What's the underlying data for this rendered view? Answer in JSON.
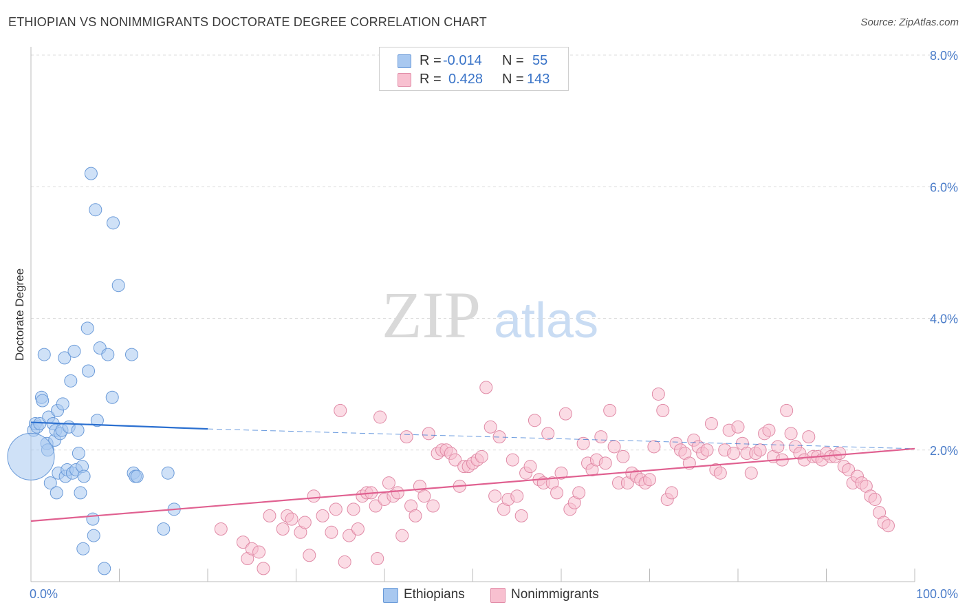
{
  "title": "ETHIOPIAN VS NONIMMIGRANTS DOCTORATE DEGREE CORRELATION CHART",
  "source": "Source: ZipAtlas.com",
  "watermark": {
    "zip": "ZIP",
    "atlas": "atlas"
  },
  "legend": {
    "r_label": "R =",
    "n_label": "N =",
    "rows": [
      {
        "r": "-0.014",
        "n": "55",
        "color": "#a8c8f0",
        "border": "#6a9ad8"
      },
      {
        "r": "0.428",
        "n": "143",
        "color": "#f8c0d0",
        "border": "#e08aa6"
      }
    ]
  },
  "bottom_legend": [
    {
      "label": "Ethiopians",
      "color": "#a8c8f0",
      "border": "#6a9ad8"
    },
    {
      "label": "Nonimmigrants",
      "color": "#f8c0d0",
      "border": "#e08aa6"
    }
  ],
  "chart_data": {
    "type": "scatter",
    "title": "ETHIOPIAN VS NONIMMIGRANTS DOCTORATE DEGREE CORRELATION CHART",
    "xlabel": "",
    "ylabel": "Doctorate Degree",
    "xlim": [
      0,
      100
    ],
    "ylim": [
      0,
      8.0
    ],
    "x_tick_labels": [
      "0.0%",
      "100.0%"
    ],
    "y_ticks": [
      2.0,
      4.0,
      6.0,
      8.0
    ],
    "y_tick_labels": [
      "2.0%",
      "4.0%",
      "6.0%",
      "8.0%"
    ],
    "grid": true,
    "legend_position": "top-center",
    "series": [
      {
        "name": "Ethiopians",
        "color": "#a8c8f0",
        "stroke": "#6a9ad8",
        "trend": {
          "x": [
            0,
            20
          ],
          "y": [
            2.42,
            2.32
          ],
          "dashed_to_x": 100,
          "dashed_to_y": 2.02,
          "color": "#2a6fd0"
        },
        "points": [
          [
            0.3,
            2.3
          ],
          [
            0.5,
            2.4
          ],
          [
            0.7,
            2.35
          ],
          [
            1.0,
            2.4
          ],
          [
            1.2,
            2.8
          ],
          [
            1.3,
            2.75
          ],
          [
            1.5,
            3.45
          ],
          [
            1.8,
            2.1
          ],
          [
            2.0,
            2.5
          ],
          [
            1.9,
            2.0
          ],
          [
            2.2,
            1.5
          ],
          [
            2.5,
            2.4
          ],
          [
            2.7,
            2.15
          ],
          [
            2.8,
            2.3
          ],
          [
            2.9,
            1.35
          ],
          [
            3.0,
            2.6
          ],
          [
            3.1,
            1.65
          ],
          [
            3.3,
            2.25
          ],
          [
            3.5,
            2.3
          ],
          [
            3.6,
            2.7
          ],
          [
            3.8,
            3.4
          ],
          [
            3.9,
            1.6
          ],
          [
            4.1,
            1.7
          ],
          [
            4.3,
            2.35
          ],
          [
            4.5,
            3.05
          ],
          [
            4.7,
            1.65
          ],
          [
            4.9,
            3.5
          ],
          [
            5.1,
            1.7
          ],
          [
            5.3,
            2.3
          ],
          [
            5.4,
            1.95
          ],
          [
            5.6,
            1.35
          ],
          [
            5.8,
            1.75
          ],
          [
            5.9,
            0.5
          ],
          [
            6.0,
            1.6
          ],
          [
            6.4,
            3.85
          ],
          [
            6.5,
            3.2
          ],
          [
            6.8,
            6.2
          ],
          [
            7.0,
            0.95
          ],
          [
            7.1,
            0.7
          ],
          [
            7.3,
            5.65
          ],
          [
            7.5,
            2.45
          ],
          [
            7.8,
            3.55
          ],
          [
            8.3,
            0.2
          ],
          [
            8.7,
            3.45
          ],
          [
            9.3,
            5.45
          ],
          [
            9.2,
            2.8
          ],
          [
            9.9,
            4.5
          ],
          [
            11.4,
            3.45
          ],
          [
            11.6,
            1.65
          ],
          [
            11.8,
            1.6
          ],
          [
            12.0,
            1.6
          ],
          [
            15.0,
            0.8
          ],
          [
            15.5,
            1.65
          ],
          [
            16.2,
            1.1
          ],
          [
            0.0,
            1.9
          ]
        ],
        "sizes": {
          "54": 34
        }
      },
      {
        "name": "Nonimmigrants",
        "color": "#f8c0d0",
        "stroke": "#e08aa6",
        "trend": {
          "x": [
            0,
            100
          ],
          "y": [
            0.92,
            2.02
          ],
          "color": "#e06090"
        },
        "points": [
          [
            21.5,
            0.8
          ],
          [
            24,
            0.6
          ],
          [
            24.5,
            0.35
          ],
          [
            25,
            0.5
          ],
          [
            25.8,
            0.45
          ],
          [
            26.3,
            0.2
          ],
          [
            27,
            1.0
          ],
          [
            28.5,
            0.8
          ],
          [
            29,
            1.0
          ],
          [
            29.5,
            0.95
          ],
          [
            30.5,
            0.75
          ],
          [
            31,
            0.9
          ],
          [
            31.5,
            0.4
          ],
          [
            32,
            1.3
          ],
          [
            33,
            1.0
          ],
          [
            34,
            0.75
          ],
          [
            34.5,
            1.1
          ],
          [
            35.5,
            0.3
          ],
          [
            35,
            2.6
          ],
          [
            36,
            0.7
          ],
          [
            36.5,
            1.1
          ],
          [
            37,
            0.8
          ],
          [
            37.5,
            1.3
          ],
          [
            38,
            1.35
          ],
          [
            38.5,
            1.35
          ],
          [
            39,
            1.15
          ],
          [
            39.5,
            2.5
          ],
          [
            39.2,
            0.35
          ],
          [
            40,
            1.25
          ],
          [
            40.5,
            1.5
          ],
          [
            41,
            1.3
          ],
          [
            41.5,
            1.35
          ],
          [
            42,
            0.7
          ],
          [
            42.5,
            2.2
          ],
          [
            43,
            1.15
          ],
          [
            43.5,
            1.0
          ],
          [
            44,
            1.45
          ],
          [
            44.5,
            1.3
          ],
          [
            45,
            2.25
          ],
          [
            45.5,
            1.15
          ],
          [
            46,
            1.95
          ],
          [
            46.5,
            2.0
          ],
          [
            47,
            2.0
          ],
          [
            47.5,
            1.95
          ],
          [
            48,
            1.85
          ],
          [
            48.5,
            1.45
          ],
          [
            49,
            1.75
          ],
          [
            49.5,
            1.75
          ],
          [
            50,
            1.8
          ],
          [
            50.5,
            1.85
          ],
          [
            51,
            1.9
          ],
          [
            51.5,
            2.95
          ],
          [
            52,
            2.35
          ],
          [
            52.5,
            1.3
          ],
          [
            53,
            2.2
          ],
          [
            53.5,
            1.1
          ],
          [
            54,
            1.25
          ],
          [
            54.5,
            1.85
          ],
          [
            55,
            1.3
          ],
          [
            55.5,
            1.0
          ],
          [
            56,
            1.65
          ],
          [
            56.5,
            1.75
          ],
          [
            57,
            2.45
          ],
          [
            57.5,
            1.55
          ],
          [
            58,
            1.5
          ],
          [
            58.5,
            2.25
          ],
          [
            59,
            1.5
          ],
          [
            59.5,
            1.35
          ],
          [
            60,
            1.65
          ],
          [
            60.5,
            2.55
          ],
          [
            61,
            1.1
          ],
          [
            61.5,
            1.2
          ],
          [
            62,
            1.35
          ],
          [
            62.5,
            2.1
          ],
          [
            63,
            1.8
          ],
          [
            63.5,
            1.7
          ],
          [
            64,
            1.85
          ],
          [
            64.5,
            2.2
          ],
          [
            65,
            1.8
          ],
          [
            65.5,
            2.6
          ],
          [
            66,
            2.05
          ],
          [
            66.5,
            1.5
          ],
          [
            67,
            1.9
          ],
          [
            67.5,
            1.5
          ],
          [
            68,
            1.65
          ],
          [
            68.5,
            1.6
          ],
          [
            69,
            1.55
          ],
          [
            69.5,
            1.5
          ],
          [
            70,
            1.55
          ],
          [
            70.5,
            2.05
          ],
          [
            71,
            2.85
          ],
          [
            71.5,
            2.6
          ],
          [
            72,
            1.25
          ],
          [
            72.5,
            1.35
          ],
          [
            73,
            2.1
          ],
          [
            73.5,
            2.0
          ],
          [
            74,
            1.95
          ],
          [
            74.5,
            1.8
          ],
          [
            75,
            2.15
          ],
          [
            75.5,
            2.05
          ],
          [
            76,
            1.95
          ],
          [
            76.5,
            2.0
          ],
          [
            77,
            2.4
          ],
          [
            77.5,
            1.7
          ],
          [
            78,
            1.65
          ],
          [
            78.5,
            2.0
          ],
          [
            79,
            2.3
          ],
          [
            79.5,
            1.95
          ],
          [
            80,
            2.35
          ],
          [
            80.5,
            2.1
          ],
          [
            81,
            1.95
          ],
          [
            81.5,
            1.65
          ],
          [
            82,
            1.95
          ],
          [
            82.5,
            2.0
          ],
          [
            83,
            2.25
          ],
          [
            83.5,
            2.3
          ],
          [
            84,
            1.9
          ],
          [
            84.5,
            2.05
          ],
          [
            85,
            1.85
          ],
          [
            85.5,
            2.6
          ],
          [
            86,
            2.25
          ],
          [
            86.5,
            2.05
          ],
          [
            87,
            1.95
          ],
          [
            87.5,
            1.85
          ],
          [
            88,
            2.2
          ],
          [
            88.5,
            1.9
          ],
          [
            89,
            1.9
          ],
          [
            89.5,
            1.85
          ],
          [
            90,
            1.95
          ],
          [
            90.5,
            1.9
          ],
          [
            91,
            1.9
          ],
          [
            91.5,
            1.95
          ],
          [
            92,
            1.75
          ],
          [
            92.5,
            1.7
          ],
          [
            93,
            1.5
          ],
          [
            93.5,
            1.6
          ],
          [
            94,
            1.5
          ],
          [
            94.5,
            1.45
          ],
          [
            95,
            1.3
          ],
          [
            95.5,
            1.25
          ],
          [
            96,
            1.05
          ],
          [
            96.5,
            0.9
          ],
          [
            97,
            0.85
          ]
        ]
      }
    ]
  }
}
